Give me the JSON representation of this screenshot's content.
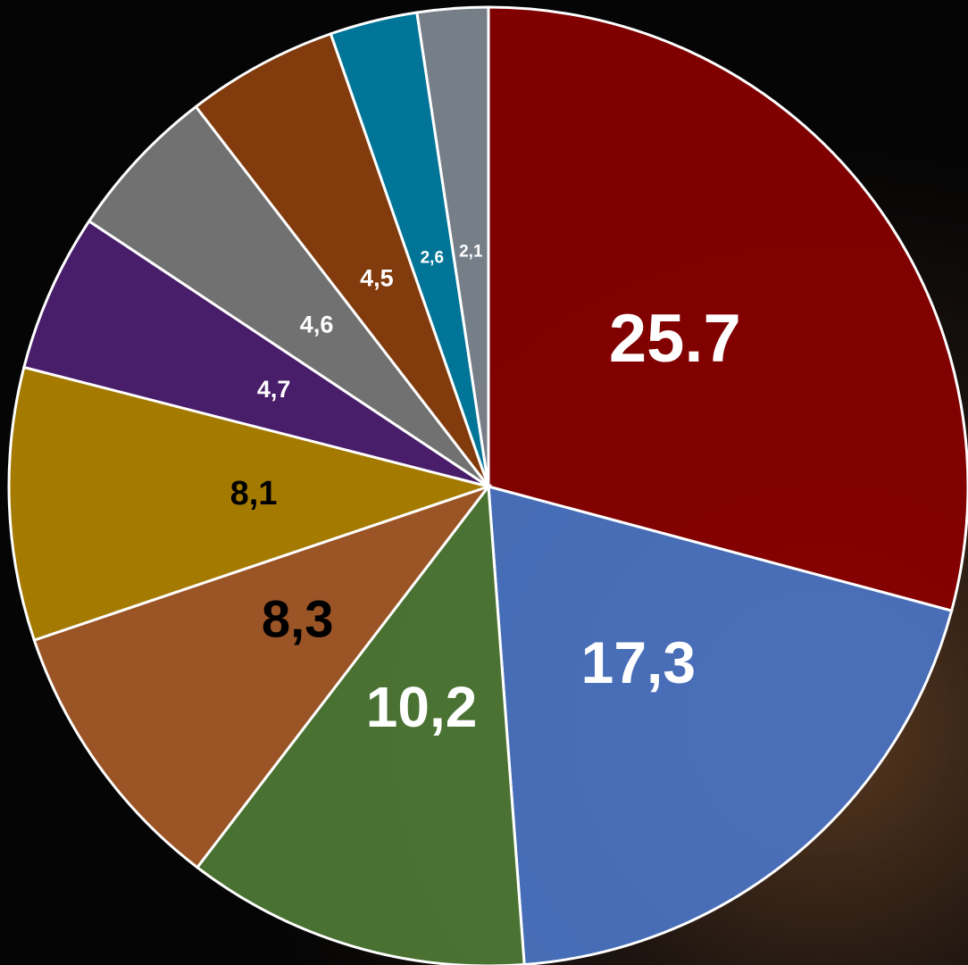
{
  "chart_data": {
    "type": "pie",
    "values": [
      25.7,
      17.3,
      10.2,
      8.3,
      8.1,
      4.7,
      4.6,
      4.5,
      2.6,
      2.1
    ],
    "value_labels": [
      "25.7",
      "17,3",
      "10,2",
      "8,3",
      "8,1",
      "4,7",
      "4,6",
      "4,5",
      "2,6",
      "2,1"
    ],
    "colors": [
      "#8a0000",
      "#4a74c4",
      "#4f7a36",
      "#a65a28",
      "#b08300",
      "#4e1f72",
      "#7a7a7a",
      "#8b400e",
      "#007ea3",
      "#7f8892"
    ],
    "label_colors": [
      "#ffffff",
      "#ffffff",
      "#ffffff",
      "#000000",
      "#000000",
      "#ffffff",
      "#ffffff",
      "#ffffff",
      "#ffffff",
      "#ffffff"
    ]
  }
}
